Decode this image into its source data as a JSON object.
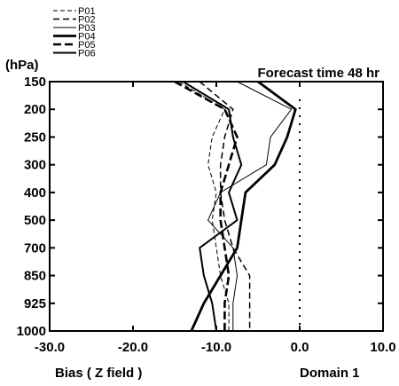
{
  "chart_data": {
    "type": "line",
    "title": "Forecast time 48 hr",
    "ylabel": "(hPa)",
    "xlabel": "Bias ( Z field )",
    "annotation": "Domain 1",
    "y_levels": [
      "150",
      "200",
      "250",
      "300",
      "400",
      "500",
      "700",
      "850",
      "925",
      "1000"
    ],
    "xlim": [
      -30,
      10
    ],
    "x_ticks": [
      "-30.0",
      "-20.0",
      "-10.0",
      "0.0",
      "10.0"
    ],
    "x_tick_values": [
      -30,
      -20,
      -10,
      0,
      10
    ],
    "reference_line": {
      "x": 0,
      "style": "dotted"
    },
    "series": [
      {
        "name": "P01",
        "style": "thin-dashed",
        "values": [
          -14.5,
          -9.0,
          -10.5,
          -11.0,
          -10.0,
          -10.5,
          -10.0,
          -9.5,
          -8.5,
          -8.5
        ]
      },
      {
        "name": "P02",
        "style": "dashed",
        "values": [
          -12.0,
          -8.0,
          -9.0,
          -9.5,
          -9.5,
          -9.0,
          -8.0,
          -6.0,
          -6.0,
          -6.0
        ]
      },
      {
        "name": "P03",
        "style": "thin-solid",
        "values": [
          -7.5,
          -1.0,
          -3.5,
          -4.0,
          -9.5,
          -11.0,
          -8.0,
          -7.5,
          -8.0,
          -8.0
        ]
      },
      {
        "name": "P04",
        "style": "thick-solid",
        "values": [
          -5.0,
          -0.5,
          -1.5,
          -3.0,
          -6.5,
          -7.0,
          -7.5,
          -9.5,
          -11.5,
          -13.0
        ]
      },
      {
        "name": "P05",
        "style": "thick-dashed",
        "values": [
          -15.0,
          -9.0,
          -7.5,
          -8.5,
          -9.5,
          -9.5,
          -9.0,
          -8.5,
          -9.0,
          -9.0
        ]
      },
      {
        "name": "P06",
        "style": "medium-solid",
        "values": [
          -14.0,
          -8.5,
          -8.0,
          -7.0,
          -8.5,
          -7.5,
          -12.0,
          -11.5,
          -10.5,
          -10.0
        ]
      }
    ]
  }
}
